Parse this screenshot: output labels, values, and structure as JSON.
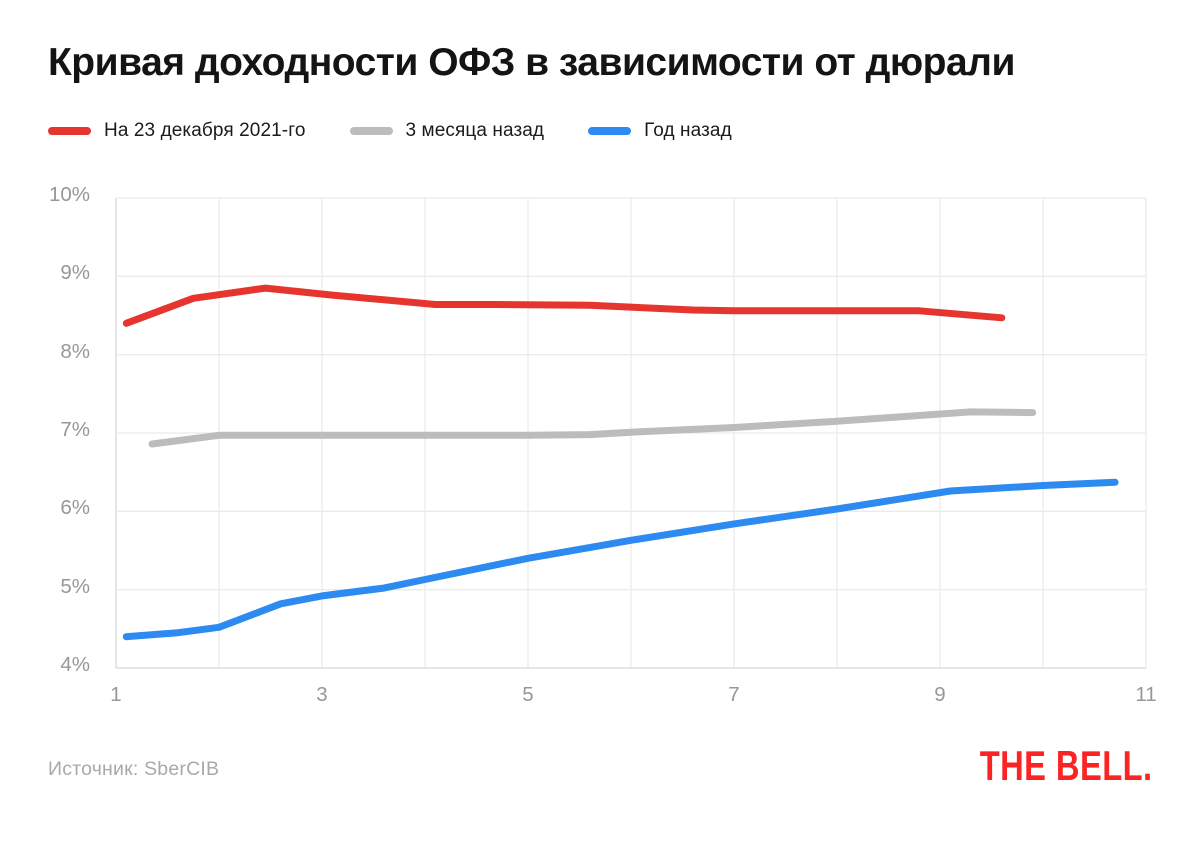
{
  "title": "Кривая доходности ОФЗ в зависимости от дюрали",
  "source": {
    "label": "Источник: SberCIB"
  },
  "logo": {
    "text": "THE BELL."
  },
  "colors": {
    "background": "#ffffff",
    "title_text": "#141414",
    "legend_text": "#1b1b1b",
    "tick_text": "#979797",
    "grid": "#ebebeb",
    "axis_line": "#d7d7d7",
    "source_text": "#a9a9a9",
    "logo_red": "#fb2424",
    "series_red": "#e5352e",
    "series_gray": "#bcbcbc",
    "series_blue": "#2c8af0"
  },
  "chart_data": {
    "type": "line",
    "title": "Кривая доходности ОФЗ в зависимости от дюрали",
    "xlabel": "",
    "ylabel": "",
    "grid": true,
    "legend_position": "top",
    "x_axis": {
      "min": 1,
      "max": 11,
      "grid_step": 1,
      "ticks": [
        {
          "value": 1,
          "label": "1"
        },
        {
          "value": 3,
          "label": "3"
        },
        {
          "value": 5,
          "label": "5"
        },
        {
          "value": 7,
          "label": "7"
        },
        {
          "value": 9,
          "label": "9"
        },
        {
          "value": 11,
          "label": "11"
        }
      ]
    },
    "y_axis": {
      "min": 4,
      "max": 10,
      "grid_step": 1,
      "ticks": [
        {
          "value": 10,
          "label": "10%"
        },
        {
          "value": 9,
          "label": "9%"
        },
        {
          "value": 8,
          "label": "8%"
        },
        {
          "value": 7,
          "label": "7%"
        },
        {
          "value": 6,
          "label": "6%"
        },
        {
          "value": 5,
          "label": "5%"
        },
        {
          "value": 4,
          "label": "4%"
        }
      ]
    },
    "series": [
      {
        "name": "На 23 декабря 2021-го",
        "color": "#e5352e",
        "points": [
          [
            1.1,
            8.4
          ],
          [
            1.75,
            8.72
          ],
          [
            2.45,
            8.85
          ],
          [
            3.1,
            8.76
          ],
          [
            4.1,
            8.64
          ],
          [
            4.7,
            8.64
          ],
          [
            5.6,
            8.63
          ],
          [
            6.6,
            8.57
          ],
          [
            7.0,
            8.56
          ],
          [
            8.8,
            8.56
          ],
          [
            9.6,
            8.47
          ]
        ]
      },
      {
        "name": "3 месяца назад",
        "color": "#bcbcbc",
        "points": [
          [
            1.35,
            6.86
          ],
          [
            2.0,
            6.97
          ],
          [
            3.0,
            6.97
          ],
          [
            4.0,
            6.97
          ],
          [
            5.0,
            6.97
          ],
          [
            5.6,
            6.98
          ],
          [
            6.0,
            7.01
          ],
          [
            7.0,
            7.07
          ],
          [
            8.0,
            7.15
          ],
          [
            9.3,
            7.27
          ],
          [
            9.9,
            7.26
          ]
        ]
      },
      {
        "name": "Год назад",
        "color": "#2c8af0",
        "points": [
          [
            1.1,
            4.4
          ],
          [
            1.6,
            4.45
          ],
          [
            2.0,
            4.52
          ],
          [
            2.6,
            4.82
          ],
          [
            3.0,
            4.92
          ],
          [
            3.6,
            5.02
          ],
          [
            4.0,
            5.13
          ],
          [
            5.0,
            5.4
          ],
          [
            6.0,
            5.63
          ],
          [
            7.0,
            5.84
          ],
          [
            8.0,
            6.03
          ],
          [
            9.1,
            6.26
          ],
          [
            10.0,
            6.33
          ],
          [
            10.7,
            6.37
          ]
        ]
      }
    ]
  }
}
